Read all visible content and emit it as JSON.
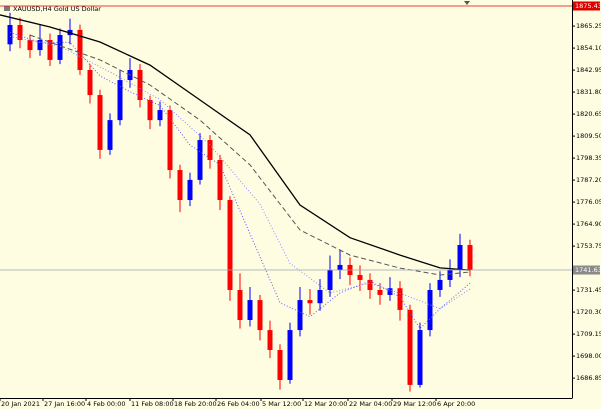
{
  "chart_data": {
    "type": "candlestick",
    "title": "XAUUSD,H4  Gold US Dollar",
    "background": "#fffde1",
    "colors": {
      "up": "#0000ff",
      "down": "#ff0000"
    },
    "xlim": [
      -1,
      56.2
    ],
    "ylim": [
      1676.77,
      1878.47
    ],
    "open": [
      1856.0,
      1865.8,
      1858.2,
      1853.1,
      1858.2,
      1848.1,
      1860.7,
      1863.3,
      1843.0,
      1830.3,
      1802.5,
      1817.6,
      1837.9,
      1843.0,
      1827.8,
      1817.6,
      1822.7,
      1792.3,
      1777.1,
      1787.3,
      1807.5,
      1797.4,
      1777.1,
      1731.5,
      1716.3,
      1726.4,
      1711.2,
      1701.1,
      1685.9,
      1711.2,
      1726.4,
      1724.8,
      1731.5,
      1741.6,
      1744.2,
      1739.1,
      1736.6,
      1731.5,
      1729.0,
      1732.4,
      1721.4,
      1683.4,
      1711.2,
      1731.5,
      1736.6,
      1741.6,
      1754.3
    ],
    "high": [
      1872.0,
      1869.5,
      1861.0,
      1866.0,
      1861.5,
      1864.0,
      1869.0,
      1866.0,
      1846.0,
      1833.0,
      1821.0,
      1843.0,
      1849.0,
      1846.0,
      1830.0,
      1827.0,
      1825.0,
      1795.0,
      1791.0,
      1811.0,
      1810.0,
      1800.0,
      1779.0,
      1740.0,
      1733.0,
      1729.0,
      1716.0,
      1704.0,
      1715.0,
      1733.0,
      1732.0,
      1737.0,
      1749.0,
      1752.0,
      1748.0,
      1744.0,
      1740.0,
      1735.0,
      1738.0,
      1736.0,
      1724.0,
      1715.0,
      1735.0,
      1741.0,
      1747.0,
      1760.0,
      1757.0
    ],
    "low": [
      1852.5,
      1854.0,
      1849.0,
      1850.2,
      1845.0,
      1846.0,
      1856.0,
      1840.5,
      1826.0,
      1798.0,
      1800.0,
      1815.0,
      1834.0,
      1824.0,
      1813.0,
      1814.5,
      1788.0,
      1771.0,
      1774.0,
      1785.0,
      1793.0,
      1772.0,
      1726.0,
      1712.0,
      1713.0,
      1706.0,
      1697.0,
      1681.0,
      1684.0,
      1708.0,
      1719.0,
      1721.0,
      1728.0,
      1737.0,
      1734.0,
      1731.0,
      1727.0,
      1724.0,
      1726.0,
      1716.0,
      1680.0,
      1682.0,
      1708.0,
      1728.0,
      1733.0,
      1738.0,
      1738.5
    ],
    "close": [
      1865.8,
      1858.2,
      1853.1,
      1858.2,
      1848.1,
      1860.7,
      1863.3,
      1843.0,
      1830.3,
      1802.5,
      1817.6,
      1837.9,
      1843.0,
      1827.8,
      1817.6,
      1822.7,
      1792.3,
      1777.1,
      1787.3,
      1807.5,
      1797.4,
      1777.1,
      1731.5,
      1716.3,
      1726.4,
      1711.2,
      1701.1,
      1685.9,
      1711.2,
      1726.4,
      1724.8,
      1731.5,
      1741.6,
      1744.2,
      1739.1,
      1736.6,
      1731.5,
      1729.0,
      1732.4,
      1721.4,
      1683.4,
      1711.2,
      1731.5,
      1736.6,
      1741.6,
      1754.3,
      1741.63
    ],
    "lines": [
      {
        "color": "#000000",
        "style": "solid",
        "width": 1.3,
        "x": [
          -1,
          4,
          9,
          14,
          19,
          24,
          29,
          34,
          39,
          43,
          46
        ],
        "values": [
          1870.9,
          1864.8,
          1857.2,
          1845.5,
          1827.8,
          1810.1,
          1774.6,
          1758.0,
          1749.2,
          1742.7,
          1741.6
        ]
      },
      {
        "color": "#555555",
        "style": "dashed",
        "width": 1,
        "x": [
          2,
          9,
          14,
          19,
          24,
          29,
          34,
          39,
          43,
          46
        ],
        "values": [
          1860.7,
          1848.1,
          1835.4,
          1817.6,
          1794.9,
          1761.9,
          1749.2,
          1742.6,
          1739.1,
          1740.6
        ]
      },
      {
        "color": "#5a5aff",
        "style": "dotted",
        "width": 1,
        "x": [
          0,
          3,
          6,
          9,
          12,
          15,
          18,
          21,
          24,
          27,
          30,
          33,
          36,
          39,
          41,
          43,
          46
        ],
        "values": [
          1862,
          1857,
          1857,
          1840,
          1832,
          1825,
          1805,
          1795,
          1760,
          1725,
          1718,
          1730,
          1736,
          1728,
          1712,
          1722,
          1735
        ]
      },
      {
        "color": "#8a8aff",
        "style": "dotted",
        "width": 1,
        "x": [
          0,
          5,
          10,
          15,
          20,
          25,
          28,
          32,
          36,
          40,
          43,
          46
        ],
        "values": [
          1860,
          1855,
          1842,
          1828,
          1805,
          1775,
          1745,
          1730,
          1735,
          1728,
          1722,
          1732
        ]
      }
    ],
    "hlines": [
      {
        "value": 1875.43,
        "label": "1875.43",
        "color": "#e00000",
        "box": "#e00000"
      },
      {
        "value": 1741.63,
        "label": "1741.63",
        "color": "#9aa4b0",
        "box": "#8a8a8a"
      }
    ],
    "yticks": [
      1865.25,
      {
        "value": 1854.1,
        "label": "1854.10"
      },
      1842.95,
      {
        "value": 1831.8,
        "label": "1831.80"
      },
      1820.65,
      {
        "value": 1809.5,
        "label": "1809.50"
      },
      1798.35,
      {
        "value": 1787.2,
        "label": "1787.20"
      },
      1776.05,
      {
        "value": 1764.9,
        "label": "1764.90"
      },
      1753.75,
      1731.45,
      {
        "value": 1720.3,
        "label": "1720.30"
      },
      1709.15,
      {
        "value": 1698.0,
        "label": "1698.00"
      },
      1686.85
    ],
    "xticks": [
      {
        "value": -1,
        "label": "20 Jan 2021"
      },
      {
        "value": 3.3,
        "label": "27 Jan 16:00"
      },
      {
        "value": 7.6,
        "label": "4 Feb 00:00"
      },
      {
        "value": 12,
        "label": "11 Feb 08:00"
      },
      {
        "value": 16.3,
        "label": "18 Feb 20:00"
      },
      {
        "value": 20.6,
        "label": "26 Feb 04:00"
      },
      {
        "value": 25.1,
        "label": "5 Mar 12:00"
      },
      {
        "value": 29.3,
        "label": "12 Mar 20:00"
      },
      {
        "value": 33.8,
        "label": "22 Mar 04:00"
      },
      {
        "value": 38.2,
        "label": "29 Mar 12:00"
      },
      {
        "value": 42.6,
        "label": "6 Apr 20:00"
      }
    ]
  }
}
